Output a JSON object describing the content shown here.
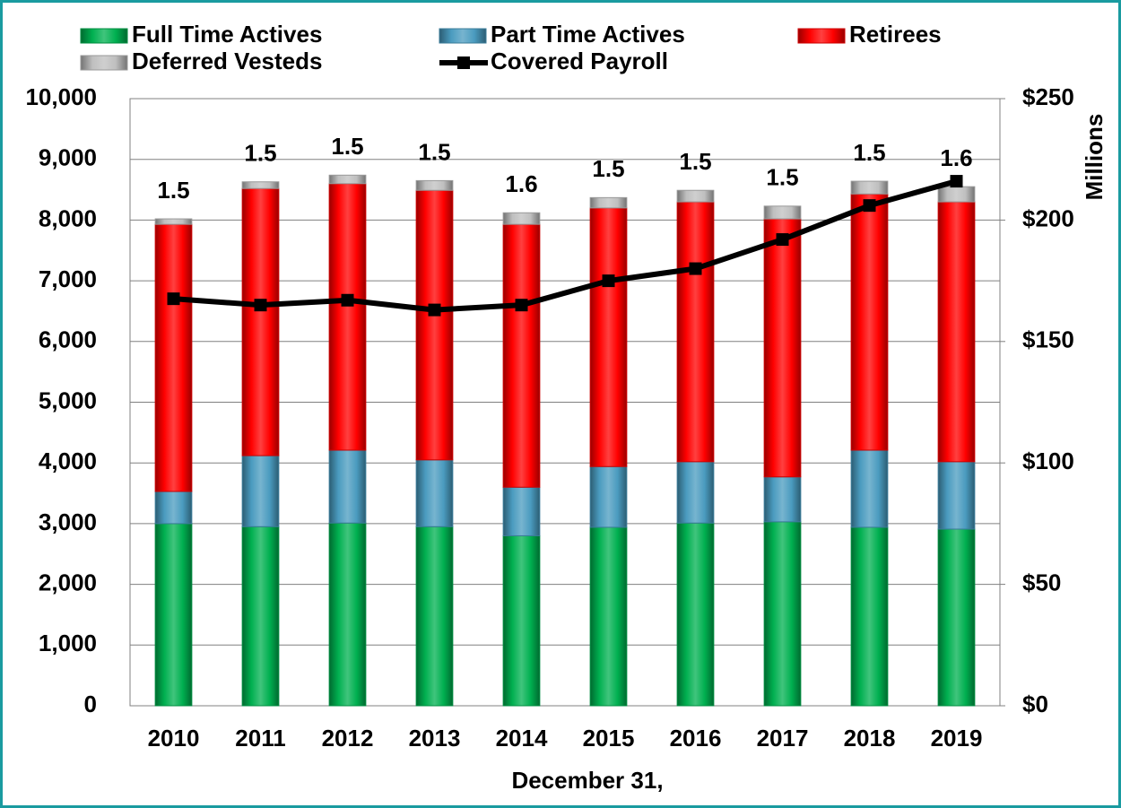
{
  "chart_data": {
    "type": "bar",
    "stacked": true,
    "x_label": "December 31,",
    "y2_label": "Millions",
    "categories": [
      "2010",
      "2011",
      "2012",
      "2013",
      "2014",
      "2015",
      "2016",
      "2017",
      "2018",
      "2019"
    ],
    "series": [
      {
        "name": "Full Time Actives",
        "color": "#00b050",
        "values": [
          3000,
          2950,
          3010,
          2950,
          2800,
          2940,
          3010,
          3030,
          2940,
          2910
        ]
      },
      {
        "name": "Part Time Actives",
        "color": "#4a9bbf",
        "values": [
          530,
          1170,
          1200,
          1100,
          800,
          1000,
          1010,
          740,
          1270,
          1110
        ]
      },
      {
        "name": "Retirees",
        "color": "#ff0000",
        "values": [
          4400,
          4400,
          4390,
          4440,
          4330,
          4260,
          4280,
          4250,
          4220,
          4280
        ]
      },
      {
        "name": "Deferred Vesteds",
        "color": "#bfbfbf",
        "values": [
          90,
          110,
          140,
          160,
          190,
          170,
          190,
          210,
          210,
          250
        ]
      },
      {
        "name": "Covered Payroll",
        "color": "#000000",
        "type": "line",
        "axis": "y2",
        "values": [
          167.6,
          165,
          167,
          163,
          165,
          175,
          180,
          192,
          206,
          216
        ]
      }
    ],
    "bar_top_labels": [
      1.5,
      1.5,
      1.5,
      1.5,
      1.6,
      1.5,
      1.5,
      1.5,
      1.5,
      1.6
    ],
    "ylim": [
      0,
      10000
    ],
    "yticks": [
      0,
      {
        "value": 1000,
        "label": "1,000"
      },
      {
        "value": 2000,
        "label": "2,000"
      },
      {
        "value": 3000,
        "label": "3,000"
      },
      {
        "value": 4000,
        "label": "4,000"
      },
      {
        "value": 5000,
        "label": "5,000"
      },
      {
        "value": 6000,
        "label": "6,000"
      },
      {
        "value": 7000,
        "label": "7,000"
      },
      {
        "value": 8000,
        "label": "8,000"
      },
      {
        "value": 9000,
        "label": "9,000"
      },
      {
        "value": 10000,
        "label": "10,000"
      }
    ],
    "y2lim": [
      0,
      250
    ],
    "y2ticks": [
      {
        "value": 0,
        "label": "$0"
      },
      {
        "value": 50,
        "label": "$50"
      },
      {
        "value": 100,
        "label": "$100"
      },
      {
        "value": 150,
        "label": "$150"
      },
      {
        "value": 200,
        "label": "$200"
      },
      {
        "value": 250,
        "label": "$250"
      }
    ],
    "grid": true,
    "legend": "top"
  }
}
